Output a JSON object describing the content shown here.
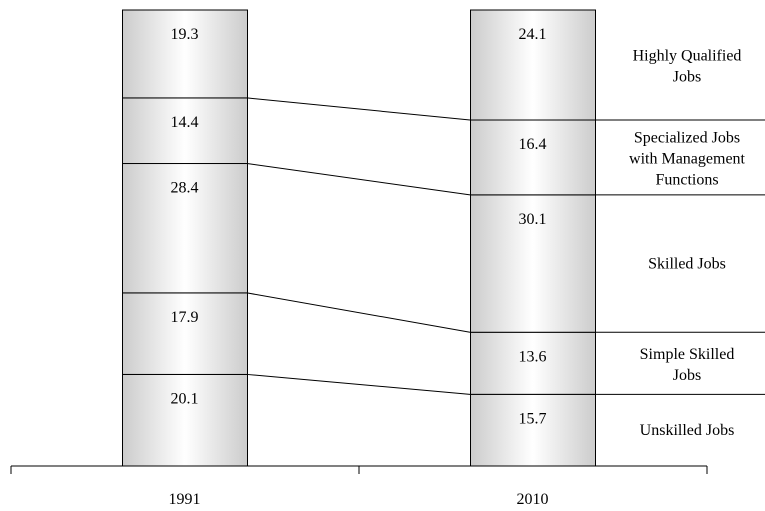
{
  "chart_data": {
    "type": "bar",
    "subtype": "stacked-100-percent",
    "categories": [
      "1991",
      "2010"
    ],
    "series": [
      {
        "name": "Unskilled Jobs",
        "values": [
          20.1,
          15.7
        ]
      },
      {
        "name": "Simple Skilled Jobs",
        "values": [
          17.9,
          13.6
        ]
      },
      {
        "name": "Skilled Jobs",
        "values": [
          28.4,
          30.1
        ]
      },
      {
        "name": "Specialized Jobs with Management Functions",
        "values": [
          14.4,
          16.4
        ]
      },
      {
        "name": "Highly Qualified Jobs",
        "values": [
          19.3,
          24.1
        ]
      }
    ],
    "legend_labels": [
      [
        "Unskilled Jobs"
      ],
      [
        "Simple Skilled",
        "Jobs"
      ],
      [
        "Skilled Jobs"
      ],
      [
        "Specialized Jobs",
        "with Management",
        "Functions"
      ],
      [
        "Highly Qualified",
        "Jobs"
      ]
    ],
    "legend_placement": "right",
    "series_lines": true,
    "grid": false,
    "title": "",
    "xlabel": "",
    "ylabel": ""
  },
  "colors": {
    "bar_edge": "#cccccc",
    "bar_center": "#ffffff",
    "outline": "#000000"
  }
}
